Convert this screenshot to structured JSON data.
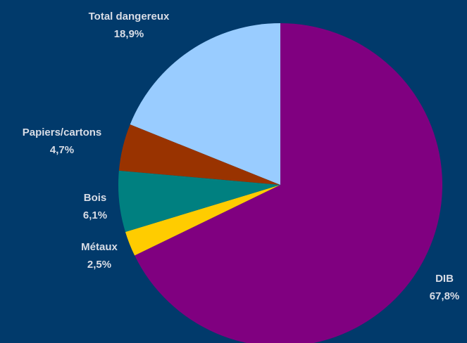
{
  "chart_data": {
    "type": "pie",
    "categories": [
      "DIB",
      "Métaux",
      "Bois",
      "Papiers/cartons",
      "Total dangereux"
    ],
    "values": [
      67.8,
      2.5,
      6.1,
      4.7,
      18.9
    ],
    "value_labels": [
      "67,8%",
      "2,5%",
      "6,1%",
      "4,7%",
      "18,9%"
    ],
    "colors": [
      "#800080",
      "#ffcc00",
      "#008080",
      "#993300",
      "#99ccff"
    ]
  }
}
